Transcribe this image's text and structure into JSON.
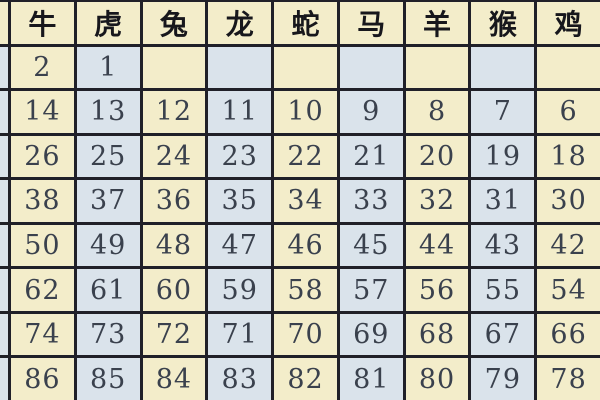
{
  "table": {
    "headers": [
      "牛",
      "虎",
      "兔",
      "龙",
      "蛇",
      "马",
      "羊",
      "猴",
      "鸡"
    ],
    "rows": [
      [
        "2",
        "1",
        "",
        "",
        "",
        "",
        "",
        "",
        ""
      ],
      [
        "14",
        "13",
        "12",
        "11",
        "10",
        "9",
        "8",
        "7",
        "6"
      ],
      [
        "26",
        "25",
        "24",
        "23",
        "22",
        "21",
        "20",
        "19",
        "18"
      ],
      [
        "38",
        "37",
        "36",
        "35",
        "34",
        "33",
        "32",
        "31",
        "30"
      ],
      [
        "50",
        "49",
        "48",
        "47",
        "46",
        "45",
        "44",
        "43",
        "42"
      ],
      [
        "62",
        "61",
        "60",
        "59",
        "58",
        "57",
        "56",
        "55",
        "54"
      ],
      [
        "74",
        "73",
        "72",
        "71",
        "70",
        "69",
        "68",
        "67",
        "66"
      ],
      [
        "86",
        "85",
        "84",
        "83",
        "82",
        "81",
        "80",
        "79",
        "78"
      ]
    ],
    "colors": {
      "border": "#202028",
      "cream_cell": "#f3edca",
      "blue_cell": "#dae3eb",
      "header_text": "#17171c",
      "number_text": "#3a414d"
    }
  },
  "chart_data": {
    "type": "table",
    "title": "",
    "columns": [
      "牛",
      "虎",
      "兔",
      "龙",
      "蛇",
      "马",
      "羊",
      "猴",
      "鸡"
    ],
    "rows": [
      [
        2,
        1,
        null,
        null,
        null,
        null,
        null,
        null,
        null
      ],
      [
        14,
        13,
        12,
        11,
        10,
        9,
        8,
        7,
        6
      ],
      [
        26,
        25,
        24,
        23,
        22,
        21,
        20,
        19,
        18
      ],
      [
        38,
        37,
        36,
        35,
        34,
        33,
        32,
        31,
        30
      ],
      [
        50,
        49,
        48,
        47,
        46,
        45,
        44,
        43,
        42
      ],
      [
        62,
        61,
        60,
        59,
        58,
        57,
        56,
        55,
        54
      ],
      [
        74,
        73,
        72,
        71,
        70,
        69,
        68,
        67,
        66
      ],
      [
        86,
        85,
        84,
        83,
        82,
        81,
        80,
        79,
        78
      ]
    ],
    "layout_hints": {
      "column_fill_pattern": "alternating cream/blue by column, header row cream",
      "grid": "on",
      "left_column_partially_cut": true,
      "right_column_partially_cut": true
    }
  }
}
